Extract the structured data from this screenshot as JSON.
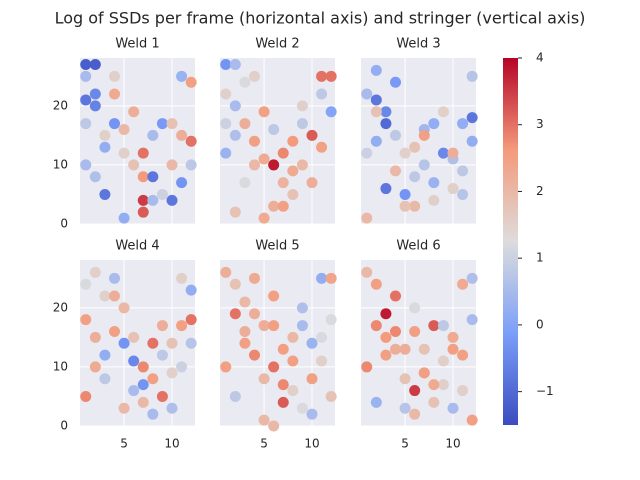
{
  "chart_data": {
    "type": "scatter",
    "title": "Log of SSDs per frame (horizontal axis) and stringer (vertical axis)",
    "xlim": [
      0.4,
      12.4
    ],
    "xticks": [
      5,
      10
    ],
    "ylim": [
      0,
      28.1
    ],
    "yticks": [
      0,
      10,
      20
    ],
    "grid": true,
    "colorbar": {
      "cmap": "coolwarm",
      "clim": [
        -1.5,
        4
      ],
      "ticks": [
        {
          "value": -1,
          "label": "−1"
        },
        0,
        1,
        2,
        3,
        4
      ]
    },
    "panels": [
      {
        "title": "Weld 1",
        "x": [
          1,
          2,
          1,
          1,
          2,
          2,
          1,
          3,
          3,
          4,
          5,
          5,
          6,
          6,
          7,
          7,
          7,
          7,
          8,
          8,
          9,
          9,
          10,
          10,
          11,
          11,
          12,
          12,
          3,
          2,
          1,
          4,
          4,
          5,
          8,
          10,
          11,
          12
        ],
        "y": [
          27,
          27,
          25,
          21,
          22,
          20,
          17,
          15,
          13,
          17,
          16,
          12,
          19,
          10,
          12,
          8,
          4,
          2,
          8,
          15,
          17,
          5,
          10,
          4,
          25,
          15,
          24,
          14,
          5,
          8,
          10,
          22,
          25,
          1,
          4,
          17,
          7,
          10
        ],
        "c": [
          -1.2,
          -1.2,
          0.5,
          -0.8,
          -0.5,
          -0.6,
          0.8,
          1.5,
          0.2,
          -0.3,
          2,
          1.5,
          2.2,
          1.8,
          3,
          2.6,
          3.5,
          3.2,
          -0.8,
          0.5,
          -0.2,
          1,
          2,
          -0.8,
          0.3,
          2.2,
          2.5,
          3,
          -0.8,
          0.6,
          0.5,
          2.3,
          1.5,
          0.2,
          0.5,
          1.8,
          -0.3,
          0.8
        ]
      },
      {
        "title": "Weld 2",
        "x": [
          1,
          2,
          1,
          2,
          3,
          2,
          1,
          3,
          4,
          4,
          5,
          5,
          6,
          6,
          6,
          7,
          7,
          8,
          8,
          9,
          9,
          10,
          10,
          11,
          11,
          12,
          12,
          3,
          2,
          5,
          7,
          9,
          11,
          1,
          4,
          8
        ],
        "y": [
          27,
          27,
          22,
          20,
          24,
          15,
          12,
          17,
          14,
          10,
          19,
          11,
          10,
          3,
          16,
          12,
          7,
          14,
          5,
          17,
          10,
          15,
          7,
          25,
          13,
          25,
          19,
          7,
          2,
          1,
          3,
          20,
          22,
          17,
          25,
          9
        ],
        "c": [
          -0.3,
          0.5,
          1.5,
          0.5,
          1.2,
          0.6,
          0.3,
          2.2,
          2.5,
          2,
          2.5,
          2.3,
          3.8,
          2.2,
          0.8,
          2.8,
          2.1,
          2.6,
          1.8,
          0.8,
          2,
          3.2,
          2.2,
          3,
          2.5,
          3,
          0,
          1.2,
          1.8,
          2.3,
          2.5,
          1.5,
          0.8,
          1,
          1.5,
          2.3
        ]
      },
      {
        "title": "Weld 3",
        "x": [
          1,
          2,
          2,
          3,
          3,
          2,
          1,
          4,
          4,
          5,
          5,
          6,
          6,
          7,
          7,
          8,
          8,
          9,
          9,
          10,
          10,
          11,
          11,
          12,
          12,
          1,
          3,
          5,
          6,
          8,
          10,
          11,
          2,
          4,
          7,
          12
        ],
        "y": [
          22,
          26,
          21,
          19,
          17,
          14,
          12,
          15,
          9,
          12,
          5,
          13,
          3,
          16,
          10,
          17,
          7,
          19,
          12,
          11,
          6,
          17,
          9,
          25,
          18,
          1,
          6,
          3,
          8,
          4,
          12,
          5,
          19,
          24,
          15,
          14
        ],
        "c": [
          0.5,
          0.2,
          -0.8,
          -0.5,
          -1,
          0.2,
          1,
          0.8,
          2,
          1.5,
          -0.3,
          1.8,
          2,
          0.4,
          0.7,
          0.2,
          0.3,
          1.5,
          -0.5,
          0.6,
          1.5,
          0.2,
          0.8,
          0.7,
          -0.8,
          2,
          -0.8,
          1.8,
          0.8,
          1.5,
          2.2,
          0.7,
          1.8,
          -0.2,
          2.5,
          0.2
        ]
      },
      {
        "title": "Weld 4",
        "x": [
          1,
          1,
          2,
          2,
          3,
          3,
          4,
          4,
          5,
          5,
          6,
          6,
          7,
          7,
          8,
          8,
          9,
          9,
          10,
          10,
          11,
          11,
          12,
          12,
          1,
          3,
          4,
          5,
          6,
          7,
          9,
          11,
          2,
          12,
          10,
          8
        ],
        "y": [
          24,
          18,
          26,
          15,
          22,
          12,
          25,
          16,
          20,
          14,
          15,
          11,
          10,
          4,
          14,
          8,
          17,
          5,
          14,
          3,
          25,
          10,
          23,
          18,
          5,
          8,
          22,
          3,
          6,
          7,
          12,
          17,
          10,
          14,
          9,
          2
        ],
        "c": [
          1.2,
          2.5,
          1.5,
          2.2,
          1.5,
          0.2,
          0.5,
          2.5,
          2,
          -0.3,
          1.8,
          -0.5,
          2.8,
          2,
          3,
          2.5,
          2.2,
          3,
          1.8,
          0.6,
          1.5,
          1,
          0.2,
          3,
          2.8,
          0.8,
          2.2,
          2,
          0.5,
          -0.3,
          0.8,
          2.5,
          2.3,
          0.7,
          1.5,
          0.5
        ]
      },
      {
        "title": "Weld 5",
        "x": [
          1,
          2,
          2,
          3,
          3,
          4,
          4,
          5,
          5,
          6,
          6,
          7,
          7,
          8,
          8,
          9,
          9,
          10,
          10,
          11,
          11,
          12,
          12,
          1,
          2,
          3,
          5,
          6,
          7,
          9,
          11,
          4,
          8,
          12,
          10,
          6
        ],
        "y": [
          26,
          24,
          19,
          21,
          14,
          25,
          12,
          17,
          8,
          22,
          10,
          4,
          13,
          15,
          6,
          17,
          3,
          14,
          8,
          25,
          11,
          25,
          5,
          10,
          5,
          16,
          1,
          17,
          7,
          20,
          15,
          19,
          11,
          18,
          2,
          0
        ],
        "c": [
          2.2,
          1.8,
          3,
          2,
          2.5,
          2.3,
          2.8,
          2.2,
          2,
          2.5,
          3,
          3.2,
          2.5,
          2,
          1.5,
          0.5,
          1.2,
          0.3,
          2.5,
          0.2,
          1.5,
          2.4,
          1.8,
          2.5,
          0.8,
          2.2,
          2,
          2.5,
          2.8,
          0.6,
          1.2,
          2.2,
          2.5,
          1.2,
          0.5,
          2
        ]
      },
      {
        "title": "Weld 6",
        "x": [
          1,
          2,
          2,
          3,
          3,
          4,
          4,
          5,
          5,
          6,
          6,
          7,
          7,
          8,
          8,
          9,
          9,
          10,
          10,
          11,
          11,
          12,
          12,
          1,
          2,
          4,
          5,
          6,
          7,
          9,
          10,
          11,
          3,
          8,
          12,
          6
        ],
        "y": [
          26,
          24,
          17,
          19,
          12,
          22,
          16,
          13,
          8,
          16,
          6,
          13,
          9,
          17,
          4,
          17,
          7,
          13,
          3,
          24,
          12,
          25,
          1,
          10,
          4,
          13,
          3,
          20,
          9,
          11,
          15,
          6,
          15,
          7,
          18,
          2
        ],
        "c": [
          2,
          2.5,
          2.8,
          3.8,
          2.5,
          3,
          2.8,
          2.2,
          1.8,
          2.5,
          3.5,
          1.8,
          2.3,
          3.2,
          1.8,
          0.8,
          1.5,
          2.5,
          0.5,
          2.3,
          2.5,
          0.6,
          2.5,
          2.8,
          0.3,
          2.2,
          0.7,
          1.2,
          2.5,
          1.5,
          2.3,
          1.5,
          2.6,
          2.3,
          0.5,
          2
        ]
      }
    ]
  }
}
